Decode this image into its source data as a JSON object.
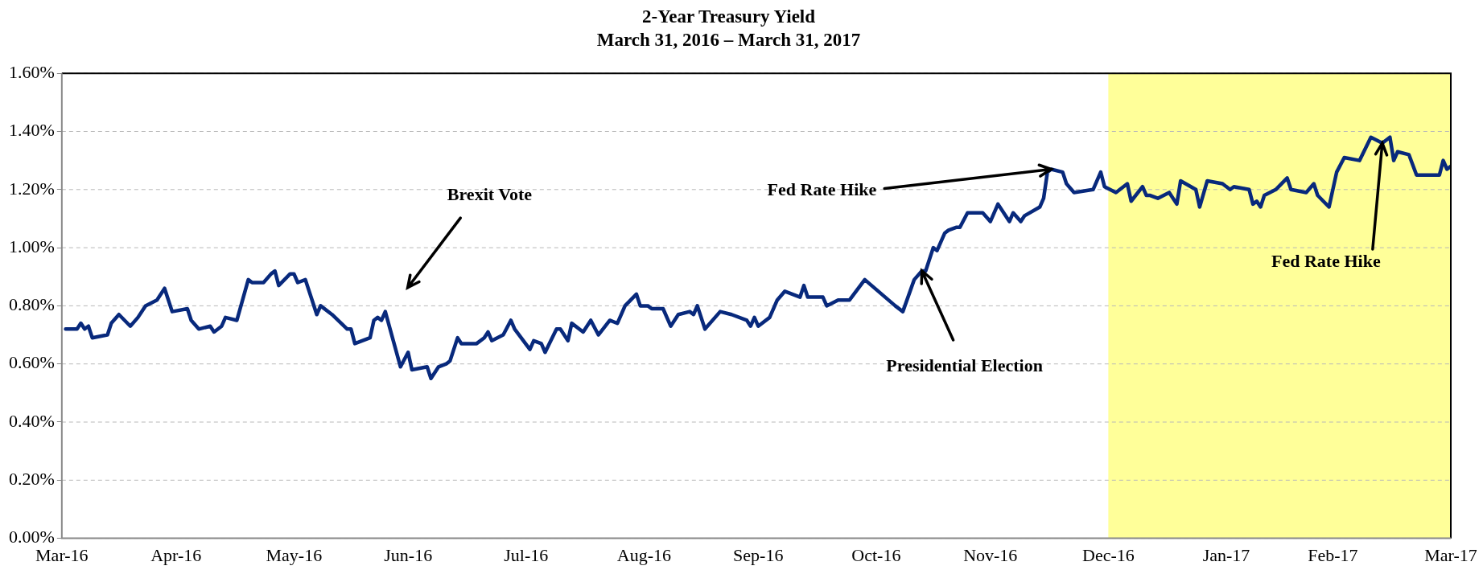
{
  "chart_data": {
    "type": "line",
    "title": "2-Year Treasury Yield",
    "subtitle": "March 31, 2016 – March 31, 2017",
    "x": [
      "2016-04-01",
      "2016-04-04",
      "2016-04-05",
      "2016-04-06",
      "2016-04-07",
      "2016-04-08",
      "2016-04-12",
      "2016-04-13",
      "2016-04-15",
      "2016-04-18",
      "2016-04-20",
      "2016-04-22",
      "2016-04-25",
      "2016-04-27",
      "2016-04-29",
      "2016-05-03",
      "2016-05-04",
      "2016-05-06",
      "2016-05-09",
      "2016-05-10",
      "2016-05-12",
      "2016-05-13",
      "2016-05-16",
      "2016-05-19",
      "2016-05-20",
      "2016-05-23",
      "2016-05-25",
      "2016-05-26",
      "2016-05-27",
      "2016-05-30",
      "2016-05-31",
      "2016-06-01",
      "2016-06-03",
      "2016-06-06",
      "2016-06-07",
      "2016-06-10",
      "2016-06-14",
      "2016-06-15",
      "2016-06-16",
      "2016-06-20",
      "2016-06-21",
      "2016-06-22",
      "2016-06-23",
      "2016-06-24",
      "2016-06-28",
      "2016-06-30",
      "2016-07-01",
      "2016-07-05",
      "2016-07-06",
      "2016-07-08",
      "2016-07-10",
      "2016-07-11",
      "2016-07-13",
      "2016-07-14",
      "2016-07-18",
      "2016-07-20",
      "2016-07-21",
      "2016-07-22",
      "2016-07-25",
      "2016-07-27",
      "2016-07-28",
      "2016-08-01",
      "2016-08-02",
      "2016-08-04",
      "2016-08-05",
      "2016-08-08",
      "2016-08-09",
      "2016-08-11",
      "2016-08-12",
      "2016-08-15",
      "2016-08-17",
      "2016-08-19",
      "2016-08-22",
      "2016-08-24",
      "2016-08-26",
      "2016-08-29",
      "2016-08-30",
      "2016-09-01",
      "2016-09-02",
      "2016-09-05",
      "2016-09-07",
      "2016-09-09",
      "2016-09-12",
      "2016-09-13",
      "2016-09-14",
      "2016-09-16",
      "2016-09-20",
      "2016-09-23",
      "2016-09-27",
      "2016-09-28",
      "2016-09-29",
      "2016-09-30",
      "2016-10-03",
      "2016-10-05",
      "2016-10-07",
      "2016-10-11",
      "2016-10-12",
      "2016-10-13",
      "2016-10-17",
      "2016-10-18",
      "2016-10-21",
      "2016-10-24",
      "2016-10-28",
      "2016-11-05",
      "2016-11-07",
      "2016-11-10",
      "2016-11-12",
      "2016-11-13",
      "2016-11-15",
      "2016-11-16",
      "2016-11-18",
      "2016-11-19",
      "2016-11-21",
      "2016-11-22",
      "2016-11-24",
      "2016-11-28",
      "2016-11-30",
      "2016-12-02",
      "2016-12-05",
      "2016-12-06",
      "2016-12-08",
      "2016-12-09",
      "2016-12-13",
      "2016-12-14",
      "2016-12-15",
      "2016-12-16",
      "2016-12-19",
      "2016-12-20",
      "2016-12-22",
      "2016-12-27",
      "2016-12-29",
      "2016-12-30",
      "2017-01-02",
      "2017-01-05",
      "2017-01-06",
      "2017-01-09",
      "2017-01-10",
      "2017-01-11",
      "2017-01-13",
      "2017-01-16",
      "2017-01-18",
      "2017-01-19",
      "2017-01-23",
      "2017-01-24",
      "2017-01-26",
      "2017-01-30",
      "2017-02-01",
      "2017-02-02",
      "2017-02-06",
      "2017-02-07",
      "2017-02-08",
      "2017-02-09",
      "2017-02-10",
      "2017-02-13",
      "2017-02-16",
      "2017-02-17",
      "2017-02-21",
      "2017-02-23",
      "2017-02-24",
      "2017-02-27",
      "2017-03-01",
      "2017-03-03",
      "2017-03-07",
      "2017-03-10",
      "2017-03-13",
      "2017-03-15",
      "2017-03-16",
      "2017-03-17",
      "2017-03-20",
      "2017-03-22",
      "2017-03-23",
      "2017-03-28",
      "2017-03-29",
      "2017-03-30",
      "2017-03-31"
    ],
    "series": [
      {
        "color": "#08297c",
        "values": [
          0.72,
          0.72,
          0.74,
          0.72,
          0.73,
          0.69,
          0.7,
          0.74,
          0.77,
          0.73,
          0.76,
          0.8,
          0.82,
          0.86,
          0.78,
          0.79,
          0.75,
          0.72,
          0.73,
          0.71,
          0.73,
          0.76,
          0.75,
          0.89,
          0.88,
          0.88,
          0.91,
          0.92,
          0.87,
          0.91,
          0.91,
          0.88,
          0.89,
          0.77,
          0.8,
          0.77,
          0.72,
          0.72,
          0.67,
          0.69,
          0.75,
          0.76,
          0.75,
          0.78,
          0.59,
          0.64,
          0.58,
          0.59,
          0.55,
          0.59,
          0.6,
          0.61,
          0.69,
          0.67,
          0.67,
          0.69,
          0.71,
          0.68,
          0.7,
          0.75,
          0.72,
          0.65,
          0.68,
          0.67,
          0.64,
          0.72,
          0.72,
          0.68,
          0.74,
          0.71,
          0.75,
          0.7,
          0.75,
          0.74,
          0.8,
          0.84,
          0.8,
          0.8,
          0.79,
          0.79,
          0.73,
          0.77,
          0.78,
          0.77,
          0.8,
          0.72,
          0.78,
          0.77,
          0.75,
          0.73,
          0.76,
          0.73,
          0.76,
          0.82,
          0.85,
          0.83,
          0.87,
          0.83,
          0.83,
          0.8,
          0.82,
          0.82,
          0.89,
          0.8,
          0.78,
          0.89,
          0.92,
          0.92,
          1.0,
          0.99,
          1.05,
          1.06,
          1.07,
          1.07,
          1.12,
          1.12,
          1.09,
          1.15,
          1.09,
          1.12,
          1.09,
          1.11,
          1.14,
          1.17,
          1.26,
          1.27,
          1.26,
          1.22,
          1.19,
          1.2,
          1.26,
          1.21,
          1.19,
          1.22,
          1.16,
          1.21,
          1.18,
          1.18,
          1.17,
          1.19,
          1.15,
          1.23,
          1.2,
          1.14,
          1.23,
          1.22,
          1.2,
          1.21,
          1.2,
          1.15,
          1.16,
          1.14,
          1.18,
          1.2,
          1.24,
          1.2,
          1.19,
          1.22,
          1.18,
          1.14,
          1.26,
          1.31,
          1.3,
          1.38,
          1.36,
          1.38,
          1.3,
          1.33,
          1.32,
          1.25,
          1.25,
          1.25,
          1.3,
          1.27,
          1.28
        ]
      }
    ],
    "xlim": [
      "2016-03-31",
      "2017-03-31"
    ],
    "xticks": [
      {
        "value": "2016-03-31",
        "label": "Mar-16"
      },
      {
        "value": "2016-04-30",
        "label": "Apr-16"
      },
      {
        "value": "2016-05-31",
        "label": "May-16"
      },
      {
        "value": "2016-06-30",
        "label": "Jun-16"
      },
      {
        "value": "2016-07-31",
        "label": "Jul-16"
      },
      {
        "value": "2016-08-31",
        "label": "Aug-16"
      },
      {
        "value": "2016-09-30",
        "label": "Sep-16"
      },
      {
        "value": "2016-10-31",
        "label": "Oct-16"
      },
      {
        "value": "2016-11-30",
        "label": "Nov-16"
      },
      {
        "value": "2016-12-31",
        "label": "Dec-16"
      },
      {
        "value": "2017-01-31",
        "label": "Jan-17"
      },
      {
        "value": "2017-02-28",
        "label": "Feb-17"
      },
      {
        "value": "2017-03-31",
        "label": "Mar-17"
      }
    ],
    "ylim": [
      0,
      1.6
    ],
    "yticks": [
      {
        "value": 0,
        "label": "0.00%"
      },
      {
        "value": 0.2,
        "label": "0.20%"
      },
      {
        "value": 0.4,
        "label": "0.40%"
      },
      {
        "value": 0.6,
        "label": "0.60%"
      },
      {
        "value": 0.8,
        "label": "0.80%"
      },
      {
        "value": 1.0,
        "label": "1.00%"
      },
      {
        "value": 1.2,
        "label": "1.20%"
      },
      {
        "value": 1.4,
        "label": "1.40%"
      },
      {
        "value": 1.6,
        "label": "1.60%"
      }
    ],
    "bands": [
      {
        "axis": "x",
        "from": "2016-12-31",
        "to": "2017-03-31",
        "color": "#ffff99"
      }
    ],
    "annotations": [
      "Brexit Vote",
      {
        "text": "Fed Rate Hike",
        "x": "2016-12-16",
        "y": 1.27
      },
      {
        "text": "Presidential Election",
        "x": "2016-11-12",
        "y": 0.92
      },
      {
        "text": "Fed Rate Hike",
        "x": "2017-03-13",
        "y": 1.36
      }
    ],
    "grid": "y",
    "legend": false,
    "marker": "none",
    "line_style": "solid"
  }
}
